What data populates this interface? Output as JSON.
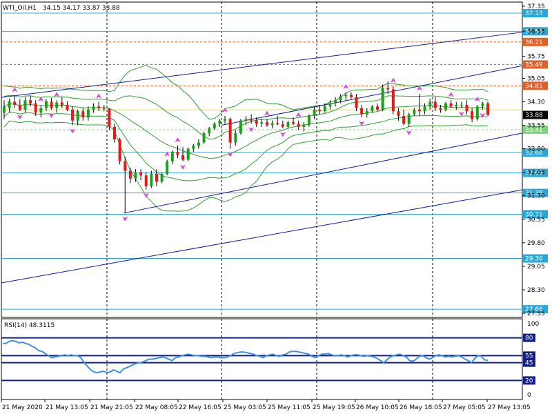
{
  "header": {
    "symbol": "WTI_Oil,H1",
    "ohlc": "34.15 34.17 33.87 33.88"
  },
  "rsi_header": "RSI(14) 48.3115",
  "colors": {
    "bull": "#1ba21b",
    "bear": "#e81818",
    "wick": "#000000",
    "level_blue": "#29a8d8",
    "level_orange": "#e0602a",
    "channel": "#0a1a9e",
    "bands": "#2e9e2e",
    "fractal": "#e040e0",
    "price_bg": "#000000",
    "price_fg": "#ffffff",
    "rsi_line": "#3d8ee0"
  },
  "chart_data": {
    "type": "candlestick",
    "price_axis": {
      "min": 27.55,
      "max": 37.35,
      "ticks": [
        "37.35",
        "36.55",
        "35.75",
        "35.05",
        "34.30",
        "33.55",
        "32.80",
        "32.05",
        "31.30",
        "30.55",
        "29.80",
        "29.05",
        "28.30",
        "27.55"
      ]
    },
    "time_labels": [
      "21 May 2020",
      "21 May 13:05",
      "21 May 21:05",
      "22 May 08:05",
      "22 May 16:05",
      "25 May 03:05",
      "25 May 11:05",
      "25 May 19:05",
      "26 May 10:05",
      "26 May 18:05",
      "27 May 05:05",
      "27 May 13:05"
    ],
    "current_price": "33.88",
    "levels": [
      {
        "value": 37.13,
        "label": "37.13",
        "kind": "solid"
      },
      {
        "value": 36.55,
        "label": "36.55",
        "kind": "solid"
      },
      {
        "value": 36.21,
        "label": "36.21",
        "kind": "dashed"
      },
      {
        "value": 35.49,
        "label": "35.49",
        "kind": "dashed"
      },
      {
        "value": 34.81,
        "label": "34.81",
        "kind": "dashed"
      },
      {
        "value": 33.41,
        "label": "33.41",
        "kind": "green_dashed"
      },
      {
        "value": 32.68,
        "label": "32.68",
        "kind": "solid"
      },
      {
        "value": 32.03,
        "label": "32.03",
        "kind": "solid"
      },
      {
        "value": 31.39,
        "label": "31.39",
        "kind": "solid"
      },
      {
        "value": 30.71,
        "label": "30.71",
        "kind": "solid"
      },
      {
        "value": 29.3,
        "label": "29.30",
        "kind": "solid"
      },
      {
        "value": 27.68,
        "label": "27.68",
        "kind": "solid"
      }
    ],
    "candles": [
      {
        "o": 33.95,
        "h": 34.35,
        "l": 33.75,
        "c": 34.15
      },
      {
        "o": 34.1,
        "h": 34.4,
        "l": 33.95,
        "c": 34.32
      },
      {
        "o": 34.3,
        "h": 34.5,
        "l": 34.1,
        "c": 34.2
      },
      {
        "o": 34.2,
        "h": 34.38,
        "l": 34.0,
        "c": 34.05
      },
      {
        "o": 34.05,
        "h": 34.45,
        "l": 33.95,
        "c": 34.35
      },
      {
        "o": 34.35,
        "h": 34.5,
        "l": 34.15,
        "c": 34.25
      },
      {
        "o": 34.25,
        "h": 34.35,
        "l": 33.85,
        "c": 33.95
      },
      {
        "o": 33.95,
        "h": 34.2,
        "l": 33.8,
        "c": 34.1
      },
      {
        "o": 34.1,
        "h": 34.38,
        "l": 34.0,
        "c": 34.32
      },
      {
        "o": 34.3,
        "h": 34.42,
        "l": 34.05,
        "c": 34.1
      },
      {
        "o": 34.1,
        "h": 34.35,
        "l": 33.95,
        "c": 34.28
      },
      {
        "o": 34.28,
        "h": 34.45,
        "l": 34.1,
        "c": 34.2
      },
      {
        "o": 34.2,
        "h": 34.32,
        "l": 34.0,
        "c": 34.05
      },
      {
        "o": 34.05,
        "h": 34.15,
        "l": 33.55,
        "c": 33.7
      },
      {
        "o": 33.7,
        "h": 34.05,
        "l": 33.55,
        "c": 34.0
      },
      {
        "o": 34.0,
        "h": 34.1,
        "l": 33.7,
        "c": 33.8
      },
      {
        "o": 33.8,
        "h": 34.15,
        "l": 33.7,
        "c": 34.05
      },
      {
        "o": 34.05,
        "h": 34.25,
        "l": 33.95,
        "c": 34.15
      },
      {
        "o": 34.15,
        "h": 34.3,
        "l": 34.0,
        "c": 34.1
      },
      {
        "o": 34.1,
        "h": 34.2,
        "l": 34.0,
        "c": 34.08
      },
      {
        "o": 34.08,
        "h": 34.1,
        "l": 33.4,
        "c": 33.5
      },
      {
        "o": 33.5,
        "h": 33.6,
        "l": 33.0,
        "c": 33.1
      },
      {
        "o": 33.1,
        "h": 33.15,
        "l": 32.3,
        "c": 32.4
      },
      {
        "o": 32.4,
        "h": 32.55,
        "l": 30.75,
        "c": 32.1
      },
      {
        "o": 32.1,
        "h": 32.2,
        "l": 31.7,
        "c": 31.85
      },
      {
        "o": 31.85,
        "h": 32.15,
        "l": 31.75,
        "c": 32.05
      },
      {
        "o": 32.05,
        "h": 32.15,
        "l": 31.8,
        "c": 31.95
      },
      {
        "o": 31.95,
        "h": 32.05,
        "l": 31.5,
        "c": 31.6
      },
      {
        "o": 31.6,
        "h": 32.1,
        "l": 31.55,
        "c": 32.0
      },
      {
        "o": 32.0,
        "h": 32.15,
        "l": 31.6,
        "c": 31.75
      },
      {
        "o": 31.75,
        "h": 32.05,
        "l": 31.7,
        "c": 32.0
      },
      {
        "o": 32.0,
        "h": 32.45,
        "l": 31.95,
        "c": 32.4
      },
      {
        "o": 32.4,
        "h": 32.75,
        "l": 32.3,
        "c": 32.7
      },
      {
        "o": 32.7,
        "h": 32.9,
        "l": 32.5,
        "c": 32.6
      },
      {
        "o": 32.6,
        "h": 32.85,
        "l": 32.4,
        "c": 32.45
      },
      {
        "o": 32.45,
        "h": 32.85,
        "l": 32.4,
        "c": 32.8
      },
      {
        "o": 32.8,
        "h": 32.95,
        "l": 32.7,
        "c": 32.9
      },
      {
        "o": 32.9,
        "h": 33.1,
        "l": 32.8,
        "c": 33.0
      },
      {
        "o": 33.0,
        "h": 33.35,
        "l": 32.95,
        "c": 33.3
      },
      {
        "o": 33.3,
        "h": 33.5,
        "l": 33.2,
        "c": 33.45
      },
      {
        "o": 33.45,
        "h": 33.65,
        "l": 33.4,
        "c": 33.6
      },
      {
        "o": 33.6,
        "h": 33.75,
        "l": 33.5,
        "c": 33.7
      },
      {
        "o": 33.7,
        "h": 33.85,
        "l": 33.6,
        "c": 33.75
      },
      {
        "o": 33.75,
        "h": 33.8,
        "l": 32.8,
        "c": 33.0
      },
      {
        "o": 33.0,
        "h": 33.4,
        "l": 32.9,
        "c": 33.3
      },
      {
        "o": 33.3,
        "h": 33.75,
        "l": 33.25,
        "c": 33.7
      },
      {
        "o": 33.7,
        "h": 33.85,
        "l": 33.55,
        "c": 33.75
      },
      {
        "o": 33.75,
        "h": 33.9,
        "l": 33.6,
        "c": 33.7
      },
      {
        "o": 33.7,
        "h": 33.8,
        "l": 33.5,
        "c": 33.6
      },
      {
        "o": 33.6,
        "h": 33.75,
        "l": 33.5,
        "c": 33.65
      },
      {
        "o": 33.65,
        "h": 33.75,
        "l": 33.5,
        "c": 33.55
      },
      {
        "o": 33.55,
        "h": 33.7,
        "l": 33.45,
        "c": 33.62
      },
      {
        "o": 33.62,
        "h": 33.85,
        "l": 33.55,
        "c": 33.58
      },
      {
        "o": 33.58,
        "h": 33.7,
        "l": 33.45,
        "c": 33.5
      },
      {
        "o": 33.5,
        "h": 33.7,
        "l": 33.45,
        "c": 33.65
      },
      {
        "o": 33.65,
        "h": 33.8,
        "l": 33.55,
        "c": 33.6
      },
      {
        "o": 33.6,
        "h": 33.7,
        "l": 33.4,
        "c": 33.5
      },
      {
        "o": 33.5,
        "h": 33.65,
        "l": 33.35,
        "c": 33.58
      },
      {
        "o": 33.58,
        "h": 33.9,
        "l": 33.5,
        "c": 33.85
      },
      {
        "o": 33.85,
        "h": 34.15,
        "l": 33.75,
        "c": 34.05
      },
      {
        "o": 34.05,
        "h": 34.2,
        "l": 33.9,
        "c": 34.0
      },
      {
        "o": 34.0,
        "h": 34.25,
        "l": 33.95,
        "c": 34.15
      },
      {
        "o": 34.15,
        "h": 34.35,
        "l": 34.05,
        "c": 34.25
      },
      {
        "o": 34.25,
        "h": 34.45,
        "l": 34.15,
        "c": 34.35
      },
      {
        "o": 34.35,
        "h": 34.55,
        "l": 34.25,
        "c": 34.48
      },
      {
        "o": 34.48,
        "h": 34.6,
        "l": 34.35,
        "c": 34.52
      },
      {
        "o": 34.52,
        "h": 34.6,
        "l": 34.4,
        "c": 34.45
      },
      {
        "o": 34.45,
        "h": 34.55,
        "l": 34.0,
        "c": 34.1
      },
      {
        "o": 34.1,
        "h": 34.2,
        "l": 33.8,
        "c": 33.9
      },
      {
        "o": 33.9,
        "h": 34.1,
        "l": 33.8,
        "c": 34.0
      },
      {
        "o": 34.0,
        "h": 34.2,
        "l": 33.95,
        "c": 34.15
      },
      {
        "o": 34.15,
        "h": 34.25,
        "l": 34.0,
        "c": 34.05
      },
      {
        "o": 34.05,
        "h": 34.85,
        "l": 34.0,
        "c": 34.75
      },
      {
        "o": 34.75,
        "h": 34.95,
        "l": 34.55,
        "c": 34.7
      },
      {
        "o": 34.7,
        "h": 34.8,
        "l": 33.9,
        "c": 34.0
      },
      {
        "o": 34.0,
        "h": 34.1,
        "l": 33.7,
        "c": 33.85
      },
      {
        "o": 33.85,
        "h": 34.05,
        "l": 33.55,
        "c": 33.6
      },
      {
        "o": 33.6,
        "h": 33.95,
        "l": 33.5,
        "c": 33.9
      },
      {
        "o": 33.9,
        "h": 34.1,
        "l": 33.85,
        "c": 34.05
      },
      {
        "o": 34.05,
        "h": 34.55,
        "l": 33.85,
        "c": 34.0
      },
      {
        "o": 34.0,
        "h": 34.25,
        "l": 33.9,
        "c": 34.15
      },
      {
        "o": 34.15,
        "h": 34.4,
        "l": 34.05,
        "c": 34.3
      },
      {
        "o": 34.3,
        "h": 34.45,
        "l": 34.0,
        "c": 34.1
      },
      {
        "o": 34.1,
        "h": 34.2,
        "l": 33.95,
        "c": 34.05
      },
      {
        "o": 34.05,
        "h": 34.3,
        "l": 34.0,
        "c": 34.25
      },
      {
        "o": 34.25,
        "h": 34.35,
        "l": 34.1,
        "c": 34.15
      },
      {
        "o": 34.15,
        "h": 34.3,
        "l": 34.05,
        "c": 34.2
      },
      {
        "o": 34.2,
        "h": 34.3,
        "l": 34.1,
        "c": 34.2
      },
      {
        "o": 34.2,
        "h": 34.35,
        "l": 33.9,
        "c": 34.0
      },
      {
        "o": 34.0,
        "h": 34.1,
        "l": 33.65,
        "c": 33.75
      },
      {
        "o": 33.75,
        "h": 34.2,
        "l": 33.7,
        "c": 34.15
      },
      {
        "o": 34.15,
        "h": 34.3,
        "l": 34.05,
        "c": 34.25
      },
      {
        "o": 34.25,
        "h": 34.3,
        "l": 33.85,
        "c": 33.88
      }
    ],
    "fractals": [
      {
        "i": 2,
        "dir": "up"
      },
      {
        "i": 7,
        "dir": "up"
      },
      {
        "i": 10,
        "dir": "up"
      },
      {
        "i": 18,
        "dir": "up"
      },
      {
        "i": 3,
        "dir": "down"
      },
      {
        "i": 9,
        "dir": "down"
      },
      {
        "i": 13,
        "dir": "down"
      },
      {
        "i": 23,
        "dir": "down"
      },
      {
        "i": 27,
        "dir": "down"
      },
      {
        "i": 34,
        "dir": "down"
      },
      {
        "i": 43,
        "dir": "down"
      },
      {
        "i": 33,
        "dir": "up"
      },
      {
        "i": 31,
        "dir": "up"
      },
      {
        "i": 42,
        "dir": "up"
      },
      {
        "i": 50,
        "dir": "up"
      },
      {
        "i": 47,
        "dir": "down"
      },
      {
        "i": 53,
        "dir": "down"
      },
      {
        "i": 56,
        "dir": "up"
      },
      {
        "i": 68,
        "dir": "down"
      },
      {
        "i": 65,
        "dir": "up"
      },
      {
        "i": 74,
        "dir": "up"
      },
      {
        "i": 79,
        "dir": "up"
      },
      {
        "i": 77,
        "dir": "down"
      },
      {
        "i": 85,
        "dir": "up"
      },
      {
        "i": 87,
        "dir": "down"
      },
      {
        "i": 91,
        "dir": "down"
      },
      {
        "i": 90,
        "dir": "up"
      }
    ],
    "rsi": {
      "period": 14,
      "value": 48.3115,
      "levels": [
        80,
        55,
        45,
        20
      ],
      "axis_ticks": [
        "100",
        "0"
      ],
      "values": [
        72,
        72,
        75,
        76,
        75,
        73,
        74,
        72,
        71,
        68,
        66,
        62,
        61,
        58,
        55,
        52,
        53,
        54,
        55,
        56,
        55,
        56,
        55,
        55,
        52,
        45,
        40,
        35,
        32,
        31,
        32,
        33,
        31,
        32,
        35,
        33,
        31,
        36,
        38,
        40,
        42,
        44,
        45,
        46,
        48,
        50,
        50,
        51,
        52,
        53,
        52,
        50,
        48,
        52,
        53,
        55,
        56,
        57,
        56,
        55,
        55,
        54,
        54,
        53,
        52,
        53,
        53,
        52,
        52,
        53,
        55,
        58,
        59,
        60,
        60,
        59,
        58,
        57,
        55,
        54,
        52,
        55,
        56,
        57,
        55,
        54,
        56,
        57,
        60,
        61,
        61,
        60,
        59,
        58,
        57,
        54,
        52,
        55,
        57,
        57,
        58,
        56,
        55,
        55,
        56,
        55,
        53,
        55,
        56,
        56,
        55,
        54,
        55,
        54,
        53,
        51,
        48,
        45,
        49,
        53,
        55,
        56,
        57,
        55,
        53,
        48,
        47,
        50,
        54,
        55,
        52,
        50,
        52,
        55,
        56,
        55,
        53,
        54,
        53,
        54,
        55,
        53,
        50,
        48,
        45,
        51,
        55,
        54,
        49,
        48.3
      ]
    }
  }
}
